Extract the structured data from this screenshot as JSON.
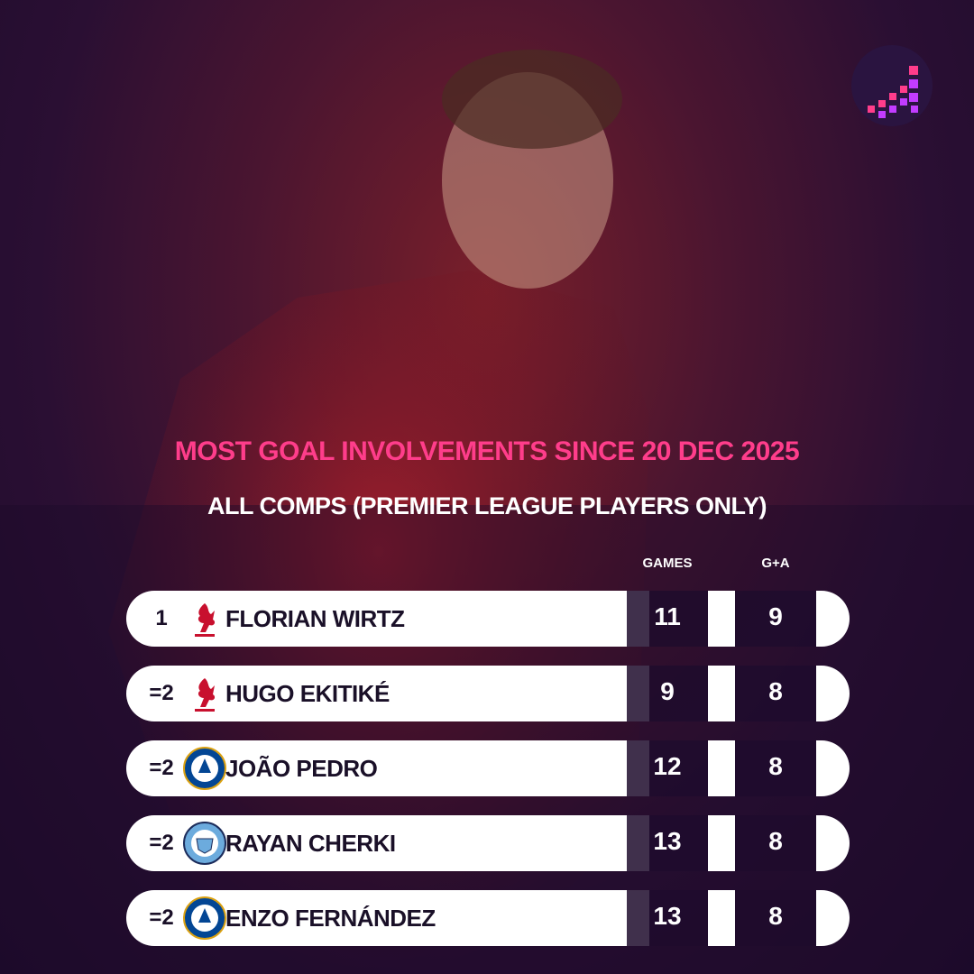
{
  "header": {
    "title": "MOST GOAL INVOLVEMENTS SINCE 20 DEC 2025",
    "subtitle": "ALL COMPS (PREMIER LEAGUE PLAYERS ONLY)"
  },
  "table": {
    "columns": [
      "GAMES",
      "G+A"
    ],
    "rows": [
      {
        "rank": "1",
        "club": "liverpool",
        "player": "FLORIAN WIRTZ",
        "games": 11,
        "ga": 9
      },
      {
        "rank": "=2",
        "club": "liverpool",
        "player": "HUGO EKITIKÉ",
        "games": 9,
        "ga": 8
      },
      {
        "rank": "=2",
        "club": "chelsea",
        "player": "JOÃO PEDRO",
        "games": 12,
        "ga": 8
      },
      {
        "rank": "=2",
        "club": "mancity",
        "player": "RAYAN CHERKI",
        "games": 13,
        "ga": 8
      },
      {
        "rank": "=2",
        "club": "chelsea",
        "player": "ENZO FERNÁNDEZ",
        "games": 13,
        "ga": 8
      }
    ]
  }
}
